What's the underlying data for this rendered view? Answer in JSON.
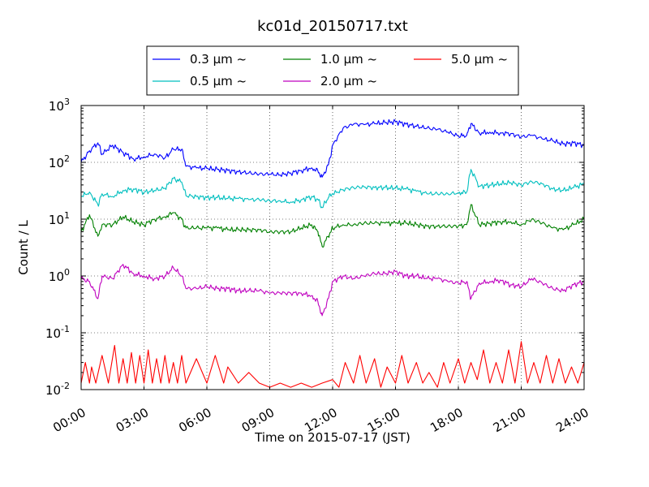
{
  "chart_data": {
    "type": "line",
    "title": "kc01d_20150717.txt",
    "xlabel": "Time on 2015-07-17 (JST)",
    "ylabel": "Count / L",
    "y_scale": "log",
    "ylim": [
      0.01,
      1000
    ],
    "xlim": [
      "00:00",
      "24:00"
    ],
    "x_ticks": [
      "00:00",
      "03:00",
      "06:00",
      "09:00",
      "12:00",
      "15:00",
      "18:00",
      "21:00",
      "24:00"
    ],
    "y_ticks": [
      {
        "base": "10",
        "exp": "-2"
      },
      {
        "base": "10",
        "exp": "-1"
      },
      {
        "base": "10",
        "exp": "0"
      },
      {
        "base": "10",
        "exp": "1"
      },
      {
        "base": "10",
        "exp": "2"
      },
      {
        "base": "10",
        "exp": "3"
      }
    ],
    "grid": true,
    "legend_position": "top-center",
    "x_unit_note": "hours since 00:00",
    "series": [
      {
        "name": "0.3 μm ~",
        "color": "#0000ff",
        "x": [
          0,
          0.4,
          0.8,
          1,
          1.5,
          2,
          2.5,
          3,
          3.5,
          4,
          4.4,
          4.8,
          5,
          5.5,
          6,
          6.5,
          7,
          7.5,
          8,
          8.5,
          9,
          9.5,
          10,
          10.5,
          11,
          11.3,
          11.5,
          11.8,
          12,
          12.5,
          13,
          13.5,
          14,
          14.5,
          15,
          15.5,
          16,
          16.5,
          17,
          17.5,
          18,
          18.4,
          18.6,
          19,
          19.5,
          20,
          20.5,
          21,
          21.5,
          22,
          22.5,
          23,
          23.5,
          24
        ],
        "y": [
          100,
          160,
          220,
          140,
          200,
          150,
          115,
          125,
          140,
          120,
          170,
          170,
          85,
          80,
          78,
          75,
          72,
          68,
          65,
          62,
          62,
          60,
          65,
          72,
          80,
          70,
          55,
          90,
          200,
          400,
          470,
          460,
          480,
          500,
          520,
          470,
          430,
          400,
          380,
          340,
          290,
          300,
          480,
          330,
          340,
          330,
          320,
          280,
          300,
          260,
          240,
          210,
          220,
          200
        ]
      },
      {
        "name": "0.5 μm ~",
        "color": "#00bfbf",
        "x": [
          0,
          0.4,
          0.8,
          1,
          1.5,
          2,
          2.5,
          3,
          3.5,
          4,
          4.4,
          4.8,
          5,
          5.5,
          6,
          6.5,
          7,
          7.5,
          8,
          8.5,
          9,
          9.5,
          10,
          10.5,
          11,
          11.3,
          11.5,
          11.8,
          12,
          12.5,
          13,
          13.5,
          14,
          14.5,
          15,
          15.5,
          16,
          16.5,
          17,
          17.5,
          18,
          18.4,
          18.6,
          19,
          19.5,
          20,
          20.5,
          21,
          21.5,
          22,
          22.5,
          23,
          23.5,
          24
        ],
        "y": [
          25,
          30,
          18,
          28,
          25,
          32,
          34,
          30,
          32,
          35,
          52,
          45,
          26,
          25,
          24,
          24,
          23,
          23,
          22,
          22,
          21,
          21,
          20,
          22,
          25,
          22,
          16,
          24,
          28,
          33,
          36,
          37,
          36,
          36,
          35,
          34,
          31,
          28,
          28,
          28,
          29,
          30,
          75,
          38,
          40,
          42,
          44,
          40,
          46,
          42,
          34,
          32,
          36,
          42
        ]
      },
      {
        "name": "1.0 μm ~",
        "color": "#008000",
        "x": [
          0,
          0.4,
          0.8,
          1,
          1.5,
          2,
          2.5,
          3,
          3.5,
          4,
          4.4,
          4.8,
          5,
          5.5,
          6,
          6.5,
          7,
          7.5,
          8,
          8.5,
          9,
          9.5,
          10,
          10.5,
          11,
          11.3,
          11.5,
          11.8,
          12,
          12.5,
          13,
          13.5,
          14,
          14.5,
          15,
          15.5,
          16,
          16.5,
          17,
          17.5,
          18,
          18.4,
          18.6,
          19,
          19.5,
          20,
          20.5,
          21,
          21.5,
          22,
          22.5,
          23,
          23.5,
          24
        ],
        "y": [
          6,
          12,
          5,
          8,
          8,
          11,
          9,
          8,
          10,
          11,
          13,
          10,
          7,
          7,
          7,
          7,
          6.5,
          6.5,
          6.5,
          6.5,
          6,
          6,
          6,
          7,
          8,
          6,
          3.3,
          5,
          7,
          8,
          8,
          8.5,
          8.5,
          8.5,
          8.5,
          8.5,
          8,
          7.5,
          7.5,
          7.5,
          7.5,
          8,
          18,
          8,
          8.5,
          9,
          9,
          8,
          10,
          8.5,
          7,
          6.5,
          8,
          10
        ]
      },
      {
        "name": "2.0 μm ~",
        "color": "#bf00bf",
        "x": [
          0,
          0.4,
          0.8,
          1,
          1.5,
          2,
          2.5,
          3,
          3.5,
          4,
          4.4,
          4.8,
          5,
          5.5,
          6,
          6.5,
          7,
          7.5,
          8,
          8.5,
          9,
          9.5,
          10,
          10.5,
          11,
          11.3,
          11.5,
          11.8,
          12,
          12.5,
          13,
          13.5,
          14,
          14.5,
          15,
          15.5,
          16,
          16.5,
          17,
          17.5,
          18,
          18.4,
          18.6,
          19,
          19.5,
          20,
          20.5,
          21,
          21.5,
          22,
          22.5,
          23,
          23.5,
          24
        ],
        "y": [
          0.9,
          0.8,
          0.4,
          1,
          0.9,
          1.6,
          1.1,
          1,
          0.9,
          1,
          1.4,
          1,
          0.6,
          0.6,
          0.65,
          0.6,
          0.6,
          0.55,
          0.55,
          0.55,
          0.5,
          0.5,
          0.5,
          0.5,
          0.45,
          0.35,
          0.2,
          0.4,
          0.8,
          1,
          0.9,
          1,
          1.1,
          1.1,
          1.2,
          1,
          1,
          0.9,
          0.9,
          0.8,
          0.75,
          0.8,
          0.4,
          0.75,
          0.8,
          0.85,
          0.7,
          0.65,
          0.9,
          0.75,
          0.6,
          0.55,
          0.7,
          0.8
        ]
      },
      {
        "name": "5.0 μm ~",
        "color": "#ff0000",
        "x": [
          0,
          0.2,
          0.4,
          0.5,
          0.7,
          1,
          1.3,
          1.6,
          1.8,
          2,
          2.2,
          2.4,
          2.6,
          2.8,
          3,
          3.2,
          3.4,
          3.6,
          3.8,
          4,
          4.2,
          4.4,
          4.6,
          4.8,
          5,
          5.5,
          6,
          6.4,
          6.8,
          7,
          7.5,
          8,
          8.5,
          9,
          9.5,
          10,
          10.5,
          11,
          11.5,
          12,
          12.3,
          12.6,
          13,
          13.3,
          13.6,
          14,
          14.3,
          14.6,
          15,
          15.3,
          15.6,
          16,
          16.3,
          16.6,
          17,
          17.3,
          17.6,
          18,
          18.3,
          18.6,
          18.9,
          19.2,
          19.5,
          19.8,
          20.1,
          20.4,
          20.7,
          21,
          21.3,
          21.6,
          21.9,
          22.2,
          22.5,
          22.8,
          23.1,
          23.4,
          23.7,
          24
        ],
        "y": [
          0.013,
          0.03,
          0.013,
          0.025,
          0.013,
          0.04,
          0.013,
          0.06,
          0.013,
          0.035,
          0.013,
          0.045,
          0.013,
          0.04,
          0.013,
          0.05,
          0.013,
          0.035,
          0.013,
          0.04,
          0.013,
          0.03,
          0.013,
          0.04,
          0.013,
          0.035,
          0.013,
          0.04,
          0.013,
          0.025,
          0.013,
          0.02,
          0.013,
          0.011,
          0.013,
          0.011,
          0.013,
          0.011,
          0.013,
          0.015,
          0.011,
          0.03,
          0.013,
          0.04,
          0.013,
          0.035,
          0.011,
          0.025,
          0.013,
          0.04,
          0.013,
          0.03,
          0.013,
          0.02,
          0.011,
          0.03,
          0.013,
          0.035,
          0.013,
          0.03,
          0.015,
          0.05,
          0.013,
          0.03,
          0.013,
          0.05,
          0.013,
          0.07,
          0.013,
          0.03,
          0.013,
          0.04,
          0.013,
          0.035,
          0.013,
          0.025,
          0.013,
          0.03
        ]
      }
    ]
  }
}
